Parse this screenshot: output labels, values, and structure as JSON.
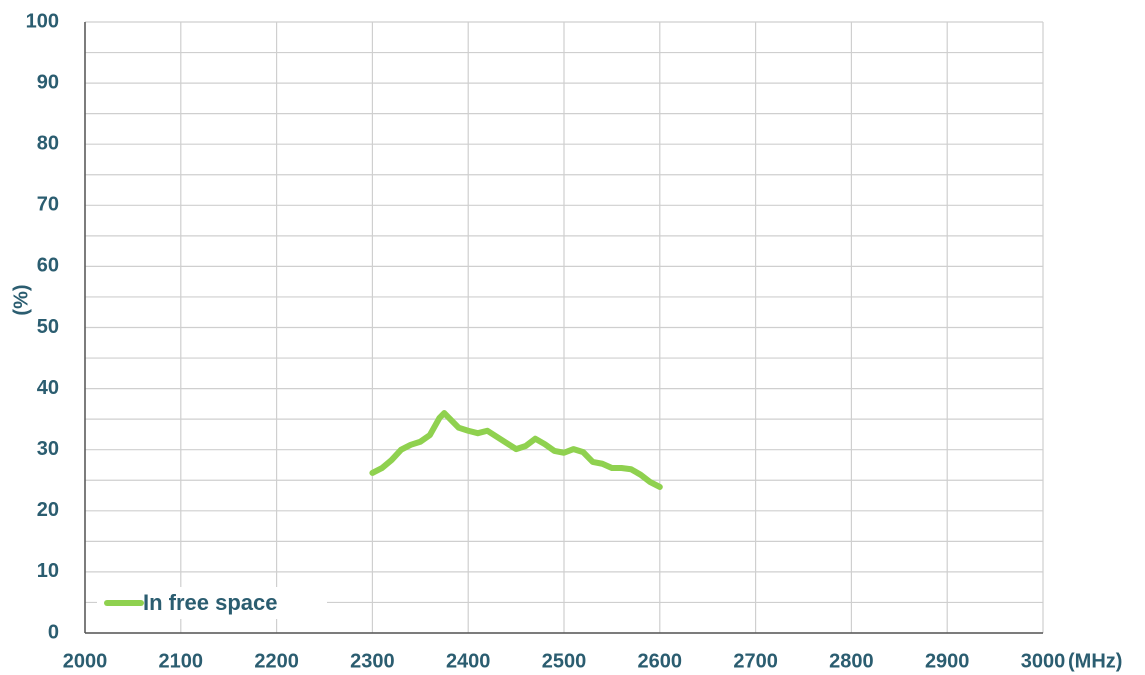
{
  "chart_data": {
    "type": "line",
    "x_label": "(MHz)",
    "y_label": "(%)",
    "x": [
      2300,
      2310,
      2320,
      2330,
      2340,
      2350,
      2360,
      2370,
      2375,
      2380,
      2390,
      2400,
      2410,
      2420,
      2430,
      2440,
      2450,
      2460,
      2470,
      2480,
      2490,
      2500,
      2510,
      2520,
      2530,
      2540,
      2550,
      2560,
      2570,
      2580,
      2590,
      2600
    ],
    "series": [
      {
        "name": "In free space",
        "color": "#8fd14f",
        "values": [
          26.2,
          27.0,
          28.3,
          30.0,
          30.8,
          31.3,
          32.4,
          35.2,
          36.0,
          35.2,
          33.6,
          33.1,
          32.7,
          33.1,
          32.1,
          31.1,
          30.1,
          30.6,
          31.8,
          30.9,
          29.8,
          29.5,
          30.1,
          29.6,
          28.0,
          27.7,
          27.0,
          27.0,
          26.8,
          25.9,
          24.7,
          23.9
        ]
      }
    ],
    "xlim": [
      2000,
      3000
    ],
    "xticks": [
      2000,
      2100,
      2200,
      2300,
      2400,
      2500,
      2600,
      2700,
      2800,
      2900,
      3000
    ],
    "ylim": [
      0,
      100
    ],
    "yticks": [
      0,
      10,
      20,
      30,
      40,
      50,
      60,
      70,
      80,
      90,
      100
    ],
    "grid": true,
    "legend": "lower left"
  }
}
